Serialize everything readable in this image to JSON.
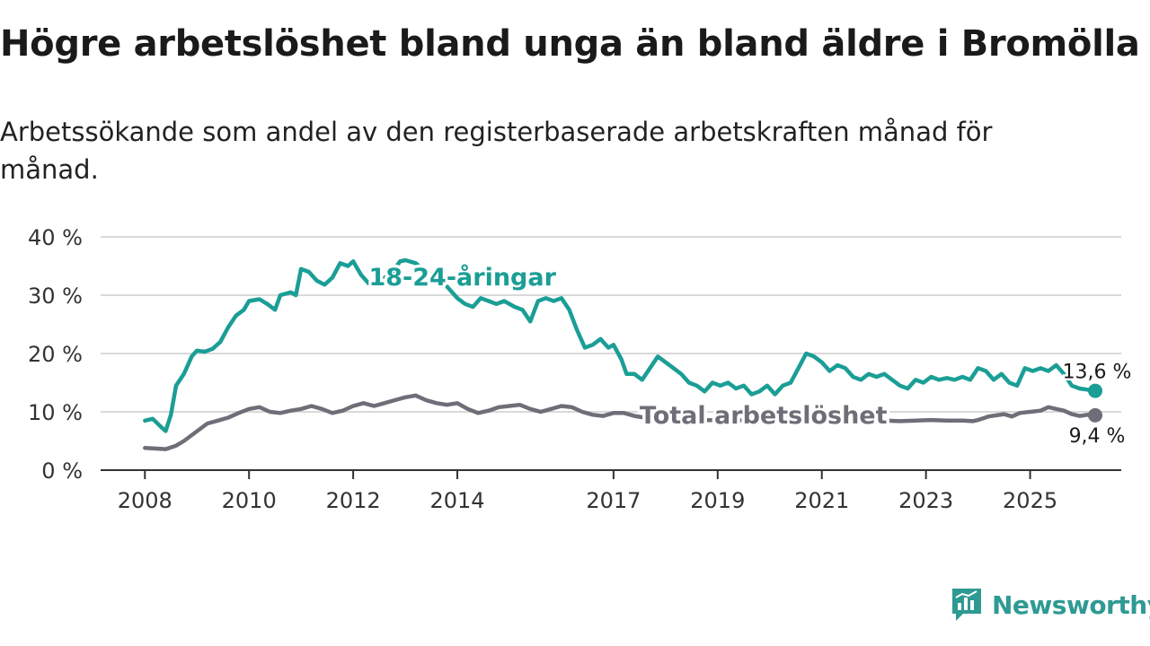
{
  "title": "Högre arbetslöshet bland unga än bland äldre i Bromölla",
  "subtitle": "Arbetssökande som andel av den registerbaserade arbetskraften månad för månad.",
  "brand": {
    "name": "Newsworthy",
    "icon": "newsworthy-logo-icon"
  },
  "colors": {
    "youth": "#1a9e96",
    "total": "#6f6e78",
    "grid": "#d9d9d9",
    "axis": "#333333"
  },
  "chart_data": {
    "type": "line",
    "ylim": [
      0,
      40
    ],
    "y_ticks": [
      0,
      10,
      20,
      30,
      40
    ],
    "y_tick_labels": [
      "0 %",
      "10 %",
      "20 %",
      "30 %",
      "40 %"
    ],
    "x_ticks": [
      2008,
      2010,
      2012,
      2014,
      2017,
      2019,
      2021,
      2023,
      2025
    ],
    "x_tick_labels": [
      "2008",
      "2010",
      "2012",
      "2014",
      "2017",
      "2019",
      "2021",
      "2023",
      "2025"
    ],
    "xlim": [
      2007.15,
      2026.75
    ],
    "series": [
      {
        "name": "18-24-åringar",
        "color": "#1a9e96",
        "end_label": "13,6 %",
        "points": [
          [
            2008.0,
            8.5
          ],
          [
            2008.15,
            8.8
          ],
          [
            2008.3,
            7.5
          ],
          [
            2008.4,
            6.7
          ],
          [
            2008.5,
            9.5
          ],
          [
            2008.6,
            14.5
          ],
          [
            2008.75,
            16.5
          ],
          [
            2008.9,
            19.5
          ],
          [
            2009.0,
            20.5
          ],
          [
            2009.15,
            20.3
          ],
          [
            2009.3,
            20.8
          ],
          [
            2009.45,
            22.0
          ],
          [
            2009.6,
            24.5
          ],
          [
            2009.75,
            26.5
          ],
          [
            2009.9,
            27.5
          ],
          [
            2010.0,
            29.0
          ],
          [
            2010.2,
            29.3
          ],
          [
            2010.35,
            28.5
          ],
          [
            2010.5,
            27.5
          ],
          [
            2010.6,
            30.0
          ],
          [
            2010.8,
            30.5
          ],
          [
            2010.9,
            30.0
          ],
          [
            2011.0,
            34.5
          ],
          [
            2011.15,
            34.0
          ],
          [
            2011.3,
            32.5
          ],
          [
            2011.45,
            31.8
          ],
          [
            2011.6,
            33.0
          ],
          [
            2011.75,
            35.5
          ],
          [
            2011.9,
            35.0
          ],
          [
            2012.0,
            35.8
          ],
          [
            2012.15,
            33.5
          ],
          [
            2012.3,
            32.0
          ],
          [
            2012.45,
            31.5
          ],
          [
            2012.6,
            33.0
          ],
          [
            2012.75,
            34.0
          ],
          [
            2012.9,
            35.8
          ],
          [
            2013.0,
            36.0
          ],
          [
            2013.2,
            35.5
          ],
          [
            2013.4,
            34.0
          ],
          [
            2013.6,
            33.0
          ],
          [
            2013.8,
            31.5
          ],
          [
            2014.0,
            29.5
          ],
          [
            2014.15,
            28.5
          ],
          [
            2014.3,
            28.0
          ],
          [
            2014.45,
            29.5
          ],
          [
            2014.6,
            29.0
          ],
          [
            2014.75,
            28.5
          ],
          [
            2014.9,
            29.0
          ],
          [
            2015.1,
            28.0
          ],
          [
            2015.25,
            27.5
          ],
          [
            2015.4,
            25.5
          ],
          [
            2015.55,
            29.0
          ],
          [
            2015.7,
            29.5
          ],
          [
            2015.85,
            29.0
          ],
          [
            2016.0,
            29.5
          ],
          [
            2016.15,
            27.5
          ],
          [
            2016.3,
            24.0
          ],
          [
            2016.45,
            21.0
          ],
          [
            2016.6,
            21.5
          ],
          [
            2016.75,
            22.5
          ],
          [
            2016.9,
            21.0
          ],
          [
            2017.0,
            21.5
          ],
          [
            2017.15,
            19.0
          ],
          [
            2017.25,
            16.5
          ],
          [
            2017.4,
            16.5
          ],
          [
            2017.55,
            15.5
          ],
          [
            2017.7,
            17.5
          ],
          [
            2017.85,
            19.5
          ],
          [
            2018.0,
            18.5
          ],
          [
            2018.15,
            17.5
          ],
          [
            2018.3,
            16.5
          ],
          [
            2018.45,
            15.0
          ],
          [
            2018.6,
            14.5
          ],
          [
            2018.75,
            13.5
          ],
          [
            2018.9,
            15.0
          ],
          [
            2019.05,
            14.5
          ],
          [
            2019.2,
            15.0
          ],
          [
            2019.35,
            14.0
          ],
          [
            2019.5,
            14.5
          ],
          [
            2019.65,
            13.0
          ],
          [
            2019.8,
            13.5
          ],
          [
            2019.95,
            14.5
          ],
          [
            2020.1,
            13.0
          ],
          [
            2020.25,
            14.5
          ],
          [
            2020.4,
            15.0
          ],
          [
            2020.55,
            17.5
          ],
          [
            2020.7,
            20.0
          ],
          [
            2020.85,
            19.5
          ],
          [
            2021.0,
            18.5
          ],
          [
            2021.15,
            17.0
          ],
          [
            2021.3,
            18.0
          ],
          [
            2021.45,
            17.5
          ],
          [
            2021.6,
            16.0
          ],
          [
            2021.75,
            15.5
          ],
          [
            2021.9,
            16.5
          ],
          [
            2022.05,
            16.0
          ],
          [
            2022.2,
            16.5
          ],
          [
            2022.35,
            15.5
          ],
          [
            2022.5,
            14.5
          ],
          [
            2022.65,
            14.0
          ],
          [
            2022.8,
            15.5
          ],
          [
            2022.95,
            15.0
          ],
          [
            2023.1,
            16.0
          ],
          [
            2023.25,
            15.5
          ],
          [
            2023.4,
            15.8
          ],
          [
            2023.55,
            15.5
          ],
          [
            2023.7,
            16.0
          ],
          [
            2023.85,
            15.5
          ],
          [
            2024.0,
            17.5
          ],
          [
            2024.15,
            17.0
          ],
          [
            2024.3,
            15.5
          ],
          [
            2024.45,
            16.5
          ],
          [
            2024.6,
            15.0
          ],
          [
            2024.75,
            14.5
          ],
          [
            2024.9,
            17.5
          ],
          [
            2025.05,
            17.0
          ],
          [
            2025.2,
            17.5
          ],
          [
            2025.35,
            17.0
          ],
          [
            2025.5,
            18.0
          ],
          [
            2025.65,
            16.5
          ],
          [
            2025.8,
            14.5
          ],
          [
            2025.95,
            14.0
          ],
          [
            2026.1,
            13.8
          ],
          [
            2026.25,
            13.6
          ]
        ]
      },
      {
        "name": "Total arbetslöshet",
        "color": "#6f6e78",
        "end_label": "9,4 %",
        "points": [
          [
            2008.0,
            3.8
          ],
          [
            2008.2,
            3.7
          ],
          [
            2008.4,
            3.6
          ],
          [
            2008.6,
            4.2
          ],
          [
            2008.75,
            5.0
          ],
          [
            2008.9,
            6.0
          ],
          [
            2009.05,
            7.0
          ],
          [
            2009.2,
            8.0
          ],
          [
            2009.4,
            8.5
          ],
          [
            2009.6,
            9.0
          ],
          [
            2009.8,
            9.8
          ],
          [
            2010.0,
            10.5
          ],
          [
            2010.2,
            10.8
          ],
          [
            2010.4,
            10.0
          ],
          [
            2010.6,
            9.8
          ],
          [
            2010.8,
            10.2
          ],
          [
            2011.0,
            10.5
          ],
          [
            2011.2,
            11.0
          ],
          [
            2011.4,
            10.5
          ],
          [
            2011.6,
            9.8
          ],
          [
            2011.8,
            10.2
          ],
          [
            2012.0,
            11.0
          ],
          [
            2012.2,
            11.5
          ],
          [
            2012.4,
            11.0
          ],
          [
            2012.6,
            11.5
          ],
          [
            2012.8,
            12.0
          ],
          [
            2013.0,
            12.5
          ],
          [
            2013.2,
            12.8
          ],
          [
            2013.4,
            12.0
          ],
          [
            2013.6,
            11.5
          ],
          [
            2013.8,
            11.2
          ],
          [
            2014.0,
            11.5
          ],
          [
            2014.2,
            10.5
          ],
          [
            2014.4,
            9.8
          ],
          [
            2014.6,
            10.2
          ],
          [
            2014.8,
            10.8
          ],
          [
            2015.0,
            11.0
          ],
          [
            2015.2,
            11.2
          ],
          [
            2015.4,
            10.5
          ],
          [
            2015.6,
            10.0
          ],
          [
            2015.8,
            10.5
          ],
          [
            2016.0,
            11.0
          ],
          [
            2016.2,
            10.8
          ],
          [
            2016.4,
            10.0
          ],
          [
            2016.6,
            9.5
          ],
          [
            2016.8,
            9.3
          ],
          [
            2017.0,
            9.8
          ],
          [
            2017.2,
            9.8
          ],
          [
            2017.4,
            9.3
          ],
          [
            2017.6,
            9.0
          ],
          [
            2017.8,
            9.2
          ],
          [
            2018.0,
            9.0
          ],
          [
            2018.3,
            8.8
          ],
          [
            2018.6,
            8.5
          ],
          [
            2018.9,
            8.6
          ],
          [
            2019.2,
            8.8
          ],
          [
            2019.5,
            8.5
          ],
          [
            2019.8,
            8.6
          ],
          [
            2020.1,
            8.8
          ],
          [
            2020.4,
            9.0
          ],
          [
            2020.7,
            9.3
          ],
          [
            2021.0,
            9.2
          ],
          [
            2021.3,
            9.0
          ],
          [
            2021.6,
            8.8
          ],
          [
            2021.9,
            8.6
          ],
          [
            2022.2,
            8.5
          ],
          [
            2022.5,
            8.4
          ],
          [
            2022.8,
            8.5
          ],
          [
            2023.1,
            8.6
          ],
          [
            2023.4,
            8.5
          ],
          [
            2023.7,
            8.5
          ],
          [
            2023.9,
            8.4
          ],
          [
            2024.0,
            8.6
          ],
          [
            2024.2,
            9.2
          ],
          [
            2024.35,
            9.4
          ],
          [
            2024.5,
            9.6
          ],
          [
            2024.65,
            9.2
          ],
          [
            2024.8,
            9.8
          ],
          [
            2025.0,
            10.0
          ],
          [
            2025.2,
            10.2
          ],
          [
            2025.35,
            10.8
          ],
          [
            2025.5,
            10.5
          ],
          [
            2025.65,
            10.2
          ],
          [
            2025.8,
            9.6
          ],
          [
            2025.95,
            9.3
          ],
          [
            2026.1,
            9.5
          ],
          [
            2026.25,
            9.4
          ]
        ]
      }
    ]
  }
}
